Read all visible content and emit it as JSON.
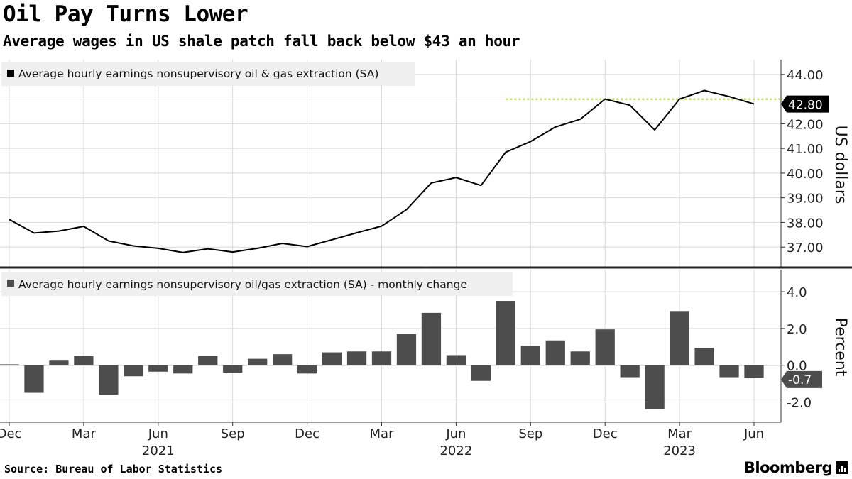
{
  "header": {
    "title": "Oil Pay Turns Lower",
    "subtitle": "Average wages in US shale patch fall back below $43 an hour"
  },
  "footer": {
    "source": "Source: Bureau of Labor Statistics",
    "brand": "Bloomberg"
  },
  "colors": {
    "line": "#000000",
    "bar": "#4d4d4d",
    "reference": "#99cc33",
    "grid": "#d9d9d9",
    "legend_bg": "#efefef"
  },
  "chart_data": [
    {
      "type": "line",
      "legend": "Average hourly earnings nonsupervisory oil & gas extraction (SA)",
      "ylabel": "US dollars",
      "ylim": [
        36.2,
        44.6
      ],
      "yticks": [
        37,
        38,
        39,
        40,
        41,
        42,
        43,
        44
      ],
      "ytick_labels": [
        "37.00",
        "38.00",
        "39.00",
        "40.00",
        "41.00",
        "42.00",
        "",
        "44.00"
      ],
      "x": [
        "2020-12",
        "2021-01",
        "2021-02",
        "2021-03",
        "2021-04",
        "2021-05",
        "2021-06",
        "2021-07",
        "2021-08",
        "2021-09",
        "2021-10",
        "2021-11",
        "2021-12",
        "2022-01",
        "2022-02",
        "2022-03",
        "2022-04",
        "2022-05",
        "2022-06",
        "2022-07",
        "2022-08",
        "2022-09",
        "2022-10",
        "2022-11",
        "2022-12",
        "2023-01",
        "2023-02",
        "2023-03",
        "2023-04",
        "2023-05",
        "2023-06"
      ],
      "values": [
        38.12,
        37.57,
        37.65,
        37.84,
        37.25,
        37.05,
        36.95,
        36.78,
        36.93,
        36.8,
        36.95,
        37.15,
        37.02,
        37.3,
        37.58,
        37.85,
        38.52,
        39.6,
        39.82,
        39.5,
        40.85,
        41.28,
        41.87,
        42.18,
        43.0,
        42.75,
        41.75,
        43.0,
        43.35,
        43.1,
        42.8
      ],
      "reference_line": {
        "value": 43.0,
        "from": "2022-08",
        "to": "2023-06"
      },
      "last_value_label": "42.80",
      "grid": true
    },
    {
      "type": "bar",
      "legend": "Average hourly earnings nonsupervisory oil/gas extraction (SA) - monthly change",
      "ylabel": "Percent",
      "ylim": [
        -3.1,
        5.2
      ],
      "yticks": [
        -2,
        0,
        2,
        4
      ],
      "ytick_labels": [
        "-2.0",
        "0.0",
        "2.0",
        "4.0"
      ],
      "x": [
        "2020-12",
        "2021-01",
        "2021-02",
        "2021-03",
        "2021-04",
        "2021-05",
        "2021-06",
        "2021-07",
        "2021-08",
        "2021-09",
        "2021-10",
        "2021-11",
        "2021-12",
        "2022-01",
        "2022-02",
        "2022-03",
        "2022-04",
        "2022-05",
        "2022-06",
        "2022-07",
        "2022-08",
        "2022-09",
        "2022-10",
        "2022-11",
        "2022-12",
        "2023-01",
        "2023-02",
        "2023-03",
        "2023-04",
        "2023-05",
        "2023-06"
      ],
      "values": [
        0.05,
        -1.5,
        0.25,
        0.5,
        -1.6,
        -0.6,
        -0.35,
        -0.45,
        0.5,
        -0.4,
        0.35,
        0.6,
        -0.45,
        0.7,
        0.75,
        0.75,
        1.7,
        2.85,
        0.55,
        -0.85,
        3.5,
        1.05,
        1.35,
        0.75,
        1.95,
        -0.65,
        -2.4,
        2.95,
        0.95,
        -0.65,
        -0.7
      ],
      "last_value_label": "-0.7",
      "grid": true
    }
  ],
  "x_axis": {
    "ticks": [
      {
        "x": "2020-12",
        "label": "Dec"
      },
      {
        "x": "2021-03",
        "label": "Mar"
      },
      {
        "x": "2021-06",
        "label": "Jun"
      },
      {
        "x": "2021-09",
        "label": "Sep"
      },
      {
        "x": "2021-12",
        "label": "Dec"
      },
      {
        "x": "2022-03",
        "label": "Mar"
      },
      {
        "x": "2022-06",
        "label": "Jun"
      },
      {
        "x": "2022-09",
        "label": "Sep"
      },
      {
        "x": "2022-12",
        "label": "Dec"
      },
      {
        "x": "2023-03",
        "label": "Mar"
      },
      {
        "x": "2023-06",
        "label": "Jun"
      }
    ],
    "years": [
      {
        "x": "2021-06",
        "label": "2021"
      },
      {
        "x": "2022-06",
        "label": "2022"
      },
      {
        "x": "2023-03",
        "label": "2023"
      }
    ]
  }
}
